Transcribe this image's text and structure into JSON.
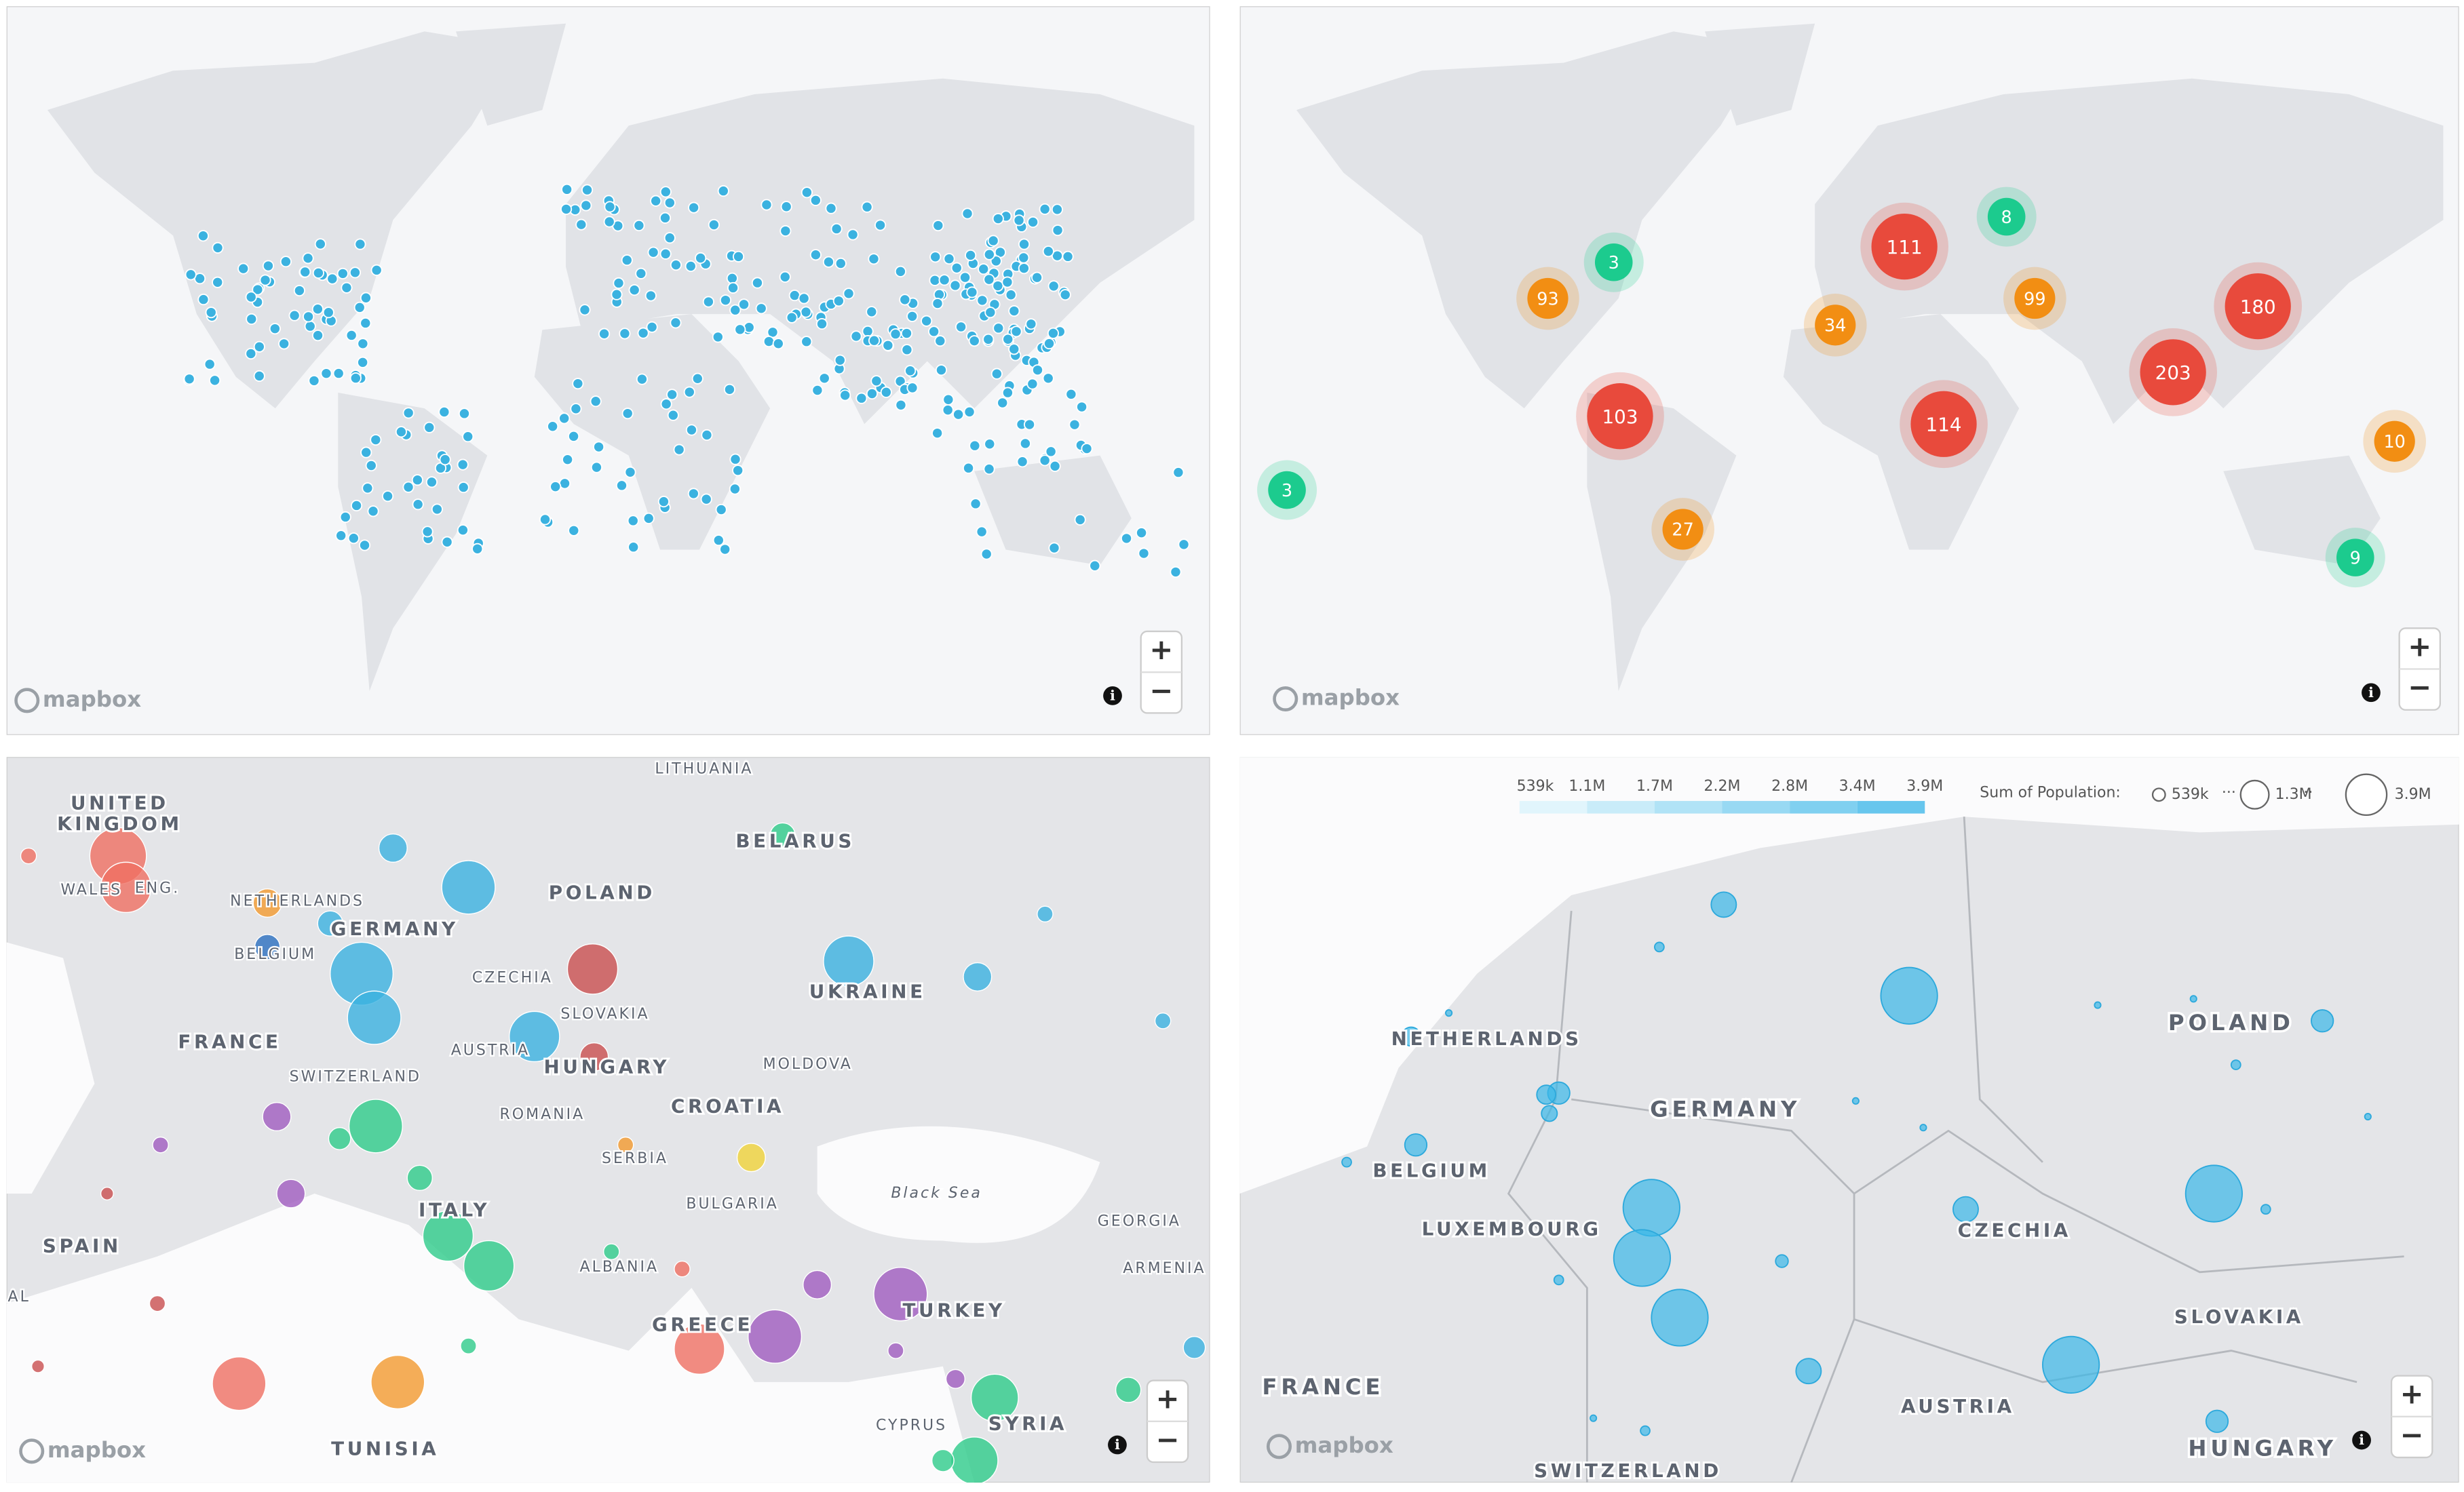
{
  "attribution": "mapbox",
  "zoom_in": "+",
  "zoom_out": "−",
  "info_icon": "i",
  "cluster_map": {
    "clusters": [
      {
        "label": "3",
        "color": "#1ccb8e"
      },
      {
        "label": "93",
        "color": "#f28e13"
      },
      {
        "label": "111",
        "color": "#e84a3c"
      },
      {
        "label": "8",
        "color": "#1ccb8e"
      },
      {
        "label": "99",
        "color": "#f28e13"
      },
      {
        "label": "34",
        "color": "#f28e13"
      },
      {
        "label": "180",
        "color": "#e84a3c"
      },
      {
        "label": "203",
        "color": "#e84a3c"
      },
      {
        "label": "103",
        "color": "#e84a3c"
      },
      {
        "label": "114",
        "color": "#e84a3c"
      },
      {
        "label": "10",
        "color": "#f28e13"
      },
      {
        "label": "3",
        "color": "#1ccb8e"
      },
      {
        "label": "27",
        "color": "#f28e13"
      },
      {
        "label": "9",
        "color": "#1ccb8e"
      }
    ]
  },
  "europe_map": {
    "labels": [
      "UNITED",
      "KINGDOM",
      "WALES",
      "ENG.",
      "NETHERLANDS",
      "BELGIUM",
      "GERMANY",
      "POLAND",
      "BELARUS",
      "UKRAINE",
      "FRANCE",
      "CZECHIA",
      "SLOVAKIA",
      "AUSTRIA",
      "HUNGARY",
      "MOLDOVA",
      "SWITZERLAND",
      "ROMANIA",
      "CROATIA",
      "SERBIA",
      "BULGARIA",
      "ITALY",
      "SPAIN",
      "ALBANIA",
      "GREECE",
      "TURKEY",
      "GEORGIA",
      "ARMENIA",
      "CYPRUS",
      "SYRIA",
      "TUNISIA",
      "Black Sea",
      "LITHUANIA",
      "AL"
    ]
  },
  "central_map": {
    "labels": [
      "NETHERLANDS",
      "BELGIUM",
      "LUXEMBOURG",
      "GERMANY",
      "POLAND",
      "CZECHIA",
      "SLOVAKIA",
      "FRANCE",
      "AUSTRIA",
      "HUNGARY",
      "SWITZERLAND"
    ],
    "color_legend": [
      "539k",
      "1.1M",
      "1.7M",
      "2.2M",
      "2.8M",
      "3.4M",
      "3.9M"
    ],
    "size_legend_title": "Sum of Population:",
    "size_legend": [
      "539k",
      "1.3M",
      "3.9M"
    ]
  }
}
